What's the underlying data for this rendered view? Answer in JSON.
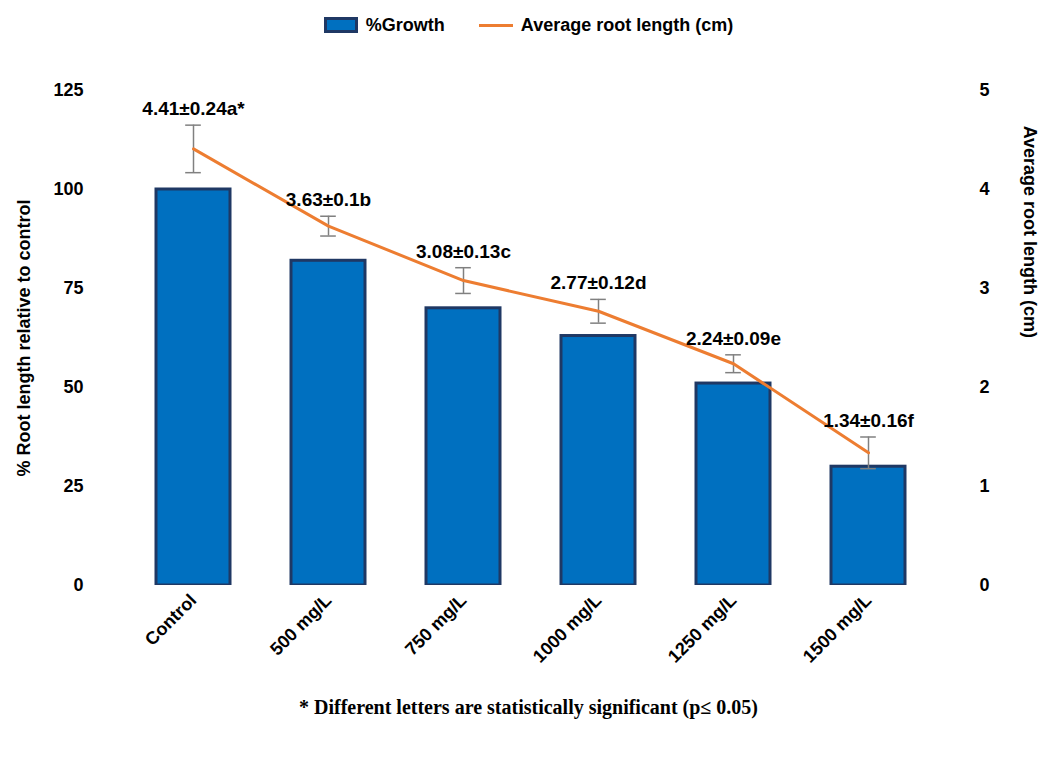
{
  "chart_data": {
    "type": "bar",
    "categories": [
      "Control",
      "500 mg/L",
      "750 mg/L",
      "1000 mg/L",
      "1250 mg/L",
      "1500 mg/L"
    ],
    "series": [
      {
        "name": "%Growth",
        "type": "bar",
        "color": "#0070c0",
        "values": [
          100,
          82,
          70,
          63,
          51,
          30
        ]
      },
      {
        "name": "Average root length (cm)",
        "type": "line",
        "axis": "y2",
        "color": "#ed7d31",
        "values": [
          4.41,
          3.63,
          3.08,
          2.77,
          2.24,
          1.34
        ],
        "errors": [
          0.24,
          0.1,
          0.13,
          0.12,
          0.09,
          0.16
        ],
        "data_labels": true,
        "value_labels": [
          "4.41±0.24a*",
          "3.63±0.1b",
          "3.08±0.13c",
          "2.77±0.12d",
          "2.24±0.09e",
          "1.34±0.16f"
        ]
      }
    ],
    "ylabel": "% Root length relative to control",
    "y2label": "Average root length (cm)",
    "ylim": [
      0,
      125
    ],
    "yticks": [
      0,
      25,
      50,
      75,
      100,
      125
    ],
    "y2lim": [
      0,
      5
    ],
    "y2ticks": [
      0,
      1,
      2,
      3,
      4,
      5
    ],
    "grid": false,
    "legend": "top",
    "annotations": [
      "* Different letters are statistically significant (p≤ 0.05)"
    ]
  }
}
